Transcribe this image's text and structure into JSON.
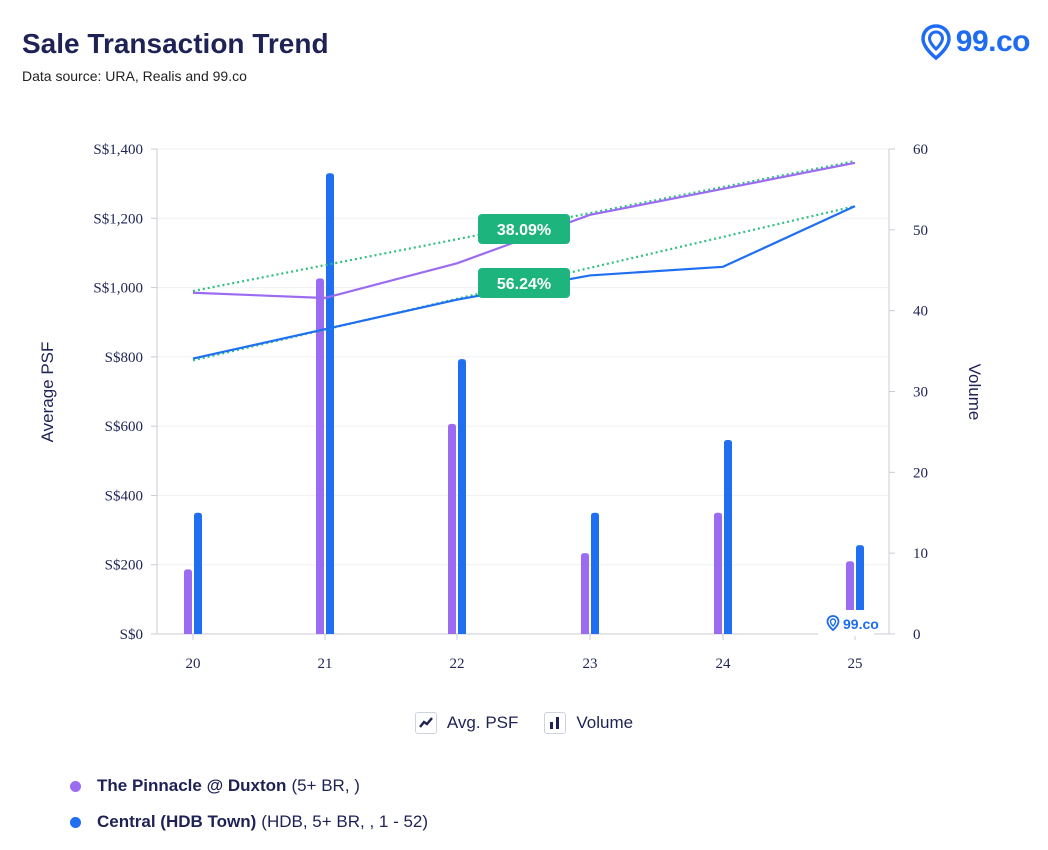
{
  "header": {
    "title": "Sale Transaction Trend",
    "subtitle": "Data source: URA, Realis and 99.co",
    "logo_text": "99.co",
    "watermark_text": "99.co"
  },
  "legend": {
    "line_label": "Avg. PSF",
    "bar_label": "Volume"
  },
  "series_legend": [
    {
      "name": "The Pinnacle @ Duxton",
      "detail": "(5+ BR, )",
      "color": "#9b6cf2"
    },
    {
      "name": "Central (HDB Town)",
      "detail": "(HDB, 5+ BR, , 1 - 52)",
      "color": "#1f6ff0"
    }
  ],
  "colors": {
    "pinnacle": "#9b6cf2",
    "central": "#1f6ff0",
    "trend": "#2fbf80",
    "badge": "#1eb47d",
    "axis_text": "#1e2254"
  },
  "chart_data": {
    "type": "bar",
    "categories": [
      "20",
      "21",
      "22",
      "23",
      "24",
      "25"
    ],
    "ylabel": "Average PSF",
    "y2label": "Volume",
    "ylim": [
      0,
      1400
    ],
    "y2lim": [
      0,
      60
    ],
    "yticks": [
      "S$0",
      "S$200",
      "S$400",
      "S$600",
      "S$800",
      "S$1,000",
      "S$1,200",
      "S$1,400"
    ],
    "y2ticks": [
      "0",
      "10",
      "20",
      "30",
      "40",
      "50",
      "60"
    ],
    "series": [
      {
        "name": "The Pinnacle @ Duxton",
        "volume": [
          8,
          44,
          26,
          10,
          15,
          9
        ],
        "avg_psf": [
          985,
          970,
          1070,
          1210,
          1285,
          1360
        ]
      },
      {
        "name": "Central (HDB Town)",
        "volume": [
          15,
          57,
          34,
          15,
          24,
          11
        ],
        "avg_psf": [
          795,
          880,
          965,
          1035,
          1060,
          1235
        ]
      }
    ],
    "trendlines": [
      {
        "series": "The Pinnacle @ Duxton",
        "start": 990,
        "end": 1365,
        "change_label": "38.09%"
      },
      {
        "series": "Central (HDB Town)",
        "start": 790,
        "end": 1235,
        "change_label": "56.24%"
      }
    ],
    "grid": true
  }
}
